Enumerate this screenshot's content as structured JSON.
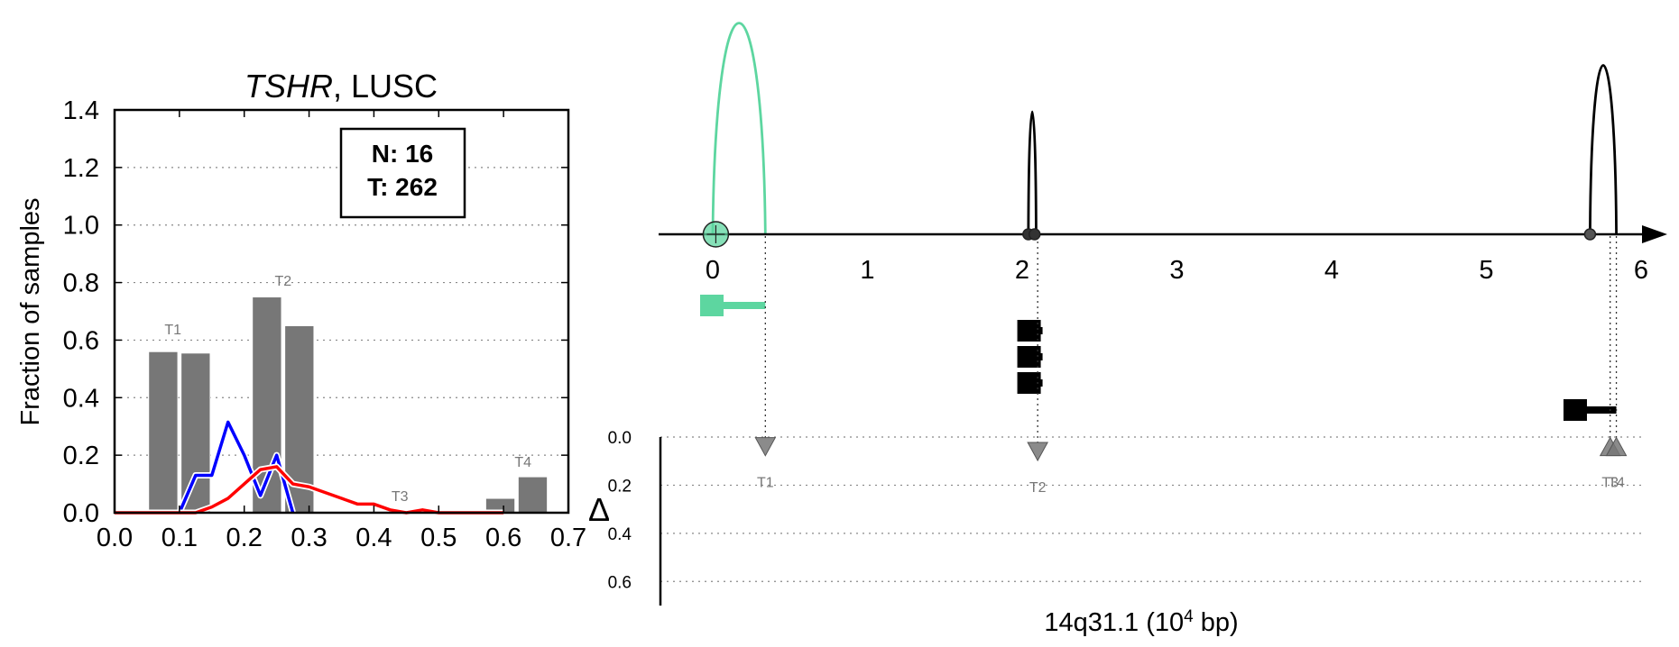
{
  "chart_data": [
    {
      "type": "bar",
      "title": "TSHR, LUSC",
      "title_italic": "TSHR",
      "title_rest": ", LUSC",
      "xlabel": "",
      "ylabel": "Fraction of samples",
      "xlim": [
        0.0,
        0.7
      ],
      "ylim": [
        0.0,
        1.4
      ],
      "xticks": [
        "0.0",
        "0.1",
        "0.2",
        "0.3",
        "0.4",
        "0.5",
        "0.6",
        "0.7"
      ],
      "yticks": [
        "0.0",
        "0.2",
        "0.4",
        "0.6",
        "0.8",
        "1.0",
        "1.2",
        "1.4"
      ],
      "grid": "horizontal dotted",
      "legend_box": {
        "n_label": "N: 16",
        "t_label": "T: 262"
      },
      "bars": [
        {
          "x": 0.075,
          "value": 0.56
        },
        {
          "x": 0.125,
          "value": 0.555
        },
        {
          "x": 0.235,
          "value": 0.75
        },
        {
          "x": 0.285,
          "value": 0.65
        },
        {
          "x": 0.595,
          "value": 0.05
        },
        {
          "x": 0.645,
          "value": 0.125
        }
      ],
      "annotations": [
        {
          "label": "T1",
          "x": 0.09,
          "y": 0.62
        },
        {
          "label": "T2",
          "x": 0.26,
          "y": 0.79
        },
        {
          "label": "T3",
          "x": 0.44,
          "y": 0.04
        },
        {
          "label": "T4",
          "x": 0.63,
          "y": 0.16
        }
      ],
      "series": [
        {
          "color": "#0000ff",
          "x": [
            0.1,
            0.125,
            0.15,
            0.175,
            0.2,
            0.225,
            0.25,
            0.275
          ],
          "y": [
            0.0,
            0.13,
            0.13,
            0.315,
            0.2,
            0.06,
            0.2,
            0.0
          ]
        },
        {
          "color": "#ff0000",
          "x": [
            0.0,
            0.1,
            0.125,
            0.15,
            0.175,
            0.2,
            0.225,
            0.25,
            0.275,
            0.3,
            0.325,
            0.35,
            0.375,
            0.4,
            0.425,
            0.45,
            0.475,
            0.5,
            0.525,
            0.55,
            0.575,
            0.6
          ],
          "y": [
            0.0,
            0.0,
            0.0,
            0.02,
            0.05,
            0.1,
            0.15,
            0.16,
            0.1,
            0.09,
            0.07,
            0.05,
            0.03,
            0.03,
            0.01,
            0.0,
            0.01,
            0.0,
            0.0,
            0.0,
            0.0,
            0.0
          ]
        }
      ]
    },
    {
      "type": "line",
      "title": "",
      "xlabel": "14q31.1 (10",
      "xlabel_sup": "4",
      "xlabel_suffix": " bp)",
      "xlim": [
        -0.35,
        6.1
      ],
      "xticks": [
        "0",
        "1",
        "2",
        "3",
        "4",
        "5",
        "6"
      ],
      "arcs": [
        {
          "x0": 0.0,
          "x1": 0.34,
          "peak": 1.0,
          "color": "#5dd6a0"
        },
        {
          "x0": 2.04,
          "x1": 2.09,
          "peak": 0.58,
          "color": "#000000"
        },
        {
          "x0": 5.67,
          "x1": 5.84,
          "peak": 0.8,
          "color": "#000000"
        }
      ],
      "points": [
        {
          "x": 0.02,
          "color": "#5dd6a0",
          "size": "large"
        },
        {
          "x": 2.04,
          "color": "#333333",
          "size": "small"
        },
        {
          "x": 2.08,
          "color": "#333333",
          "size": "small"
        },
        {
          "x": 5.67,
          "color": "#555555",
          "size": "small"
        }
      ],
      "genes": [
        {
          "x_start": 0.0,
          "x_end": 0.34,
          "row": 0,
          "color": "#5dd6a0"
        },
        {
          "x_start": 2.05,
          "x_end": 2.1,
          "row": 1,
          "color": "#000000"
        },
        {
          "x_start": 2.05,
          "x_end": 2.1,
          "row": 2,
          "color": "#000000"
        },
        {
          "x_start": 2.05,
          "x_end": 2.1,
          "row": 3,
          "color": "#000000"
        },
        {
          "x_start": 5.58,
          "x_end": 5.84,
          "row": 4,
          "color": "#000000"
        }
      ],
      "delta_axis": {
        "label": "Δ",
        "ylim": [
          0.0,
          0.7
        ],
        "yticks": [
          "0.0",
          "0.2",
          "0.4",
          "0.6"
        ]
      },
      "markers": [
        {
          "label": "T1",
          "x": 0.34,
          "delta": 0.04,
          "direction": "down"
        },
        {
          "label": "T2",
          "x": 2.1,
          "delta": 0.06,
          "direction": "down"
        },
        {
          "label": "T3",
          "x": 5.8,
          "delta": 0.04,
          "direction": "up"
        },
        {
          "label": "T4",
          "x": 5.84,
          "delta": 0.04,
          "direction": "up"
        }
      ]
    }
  ]
}
